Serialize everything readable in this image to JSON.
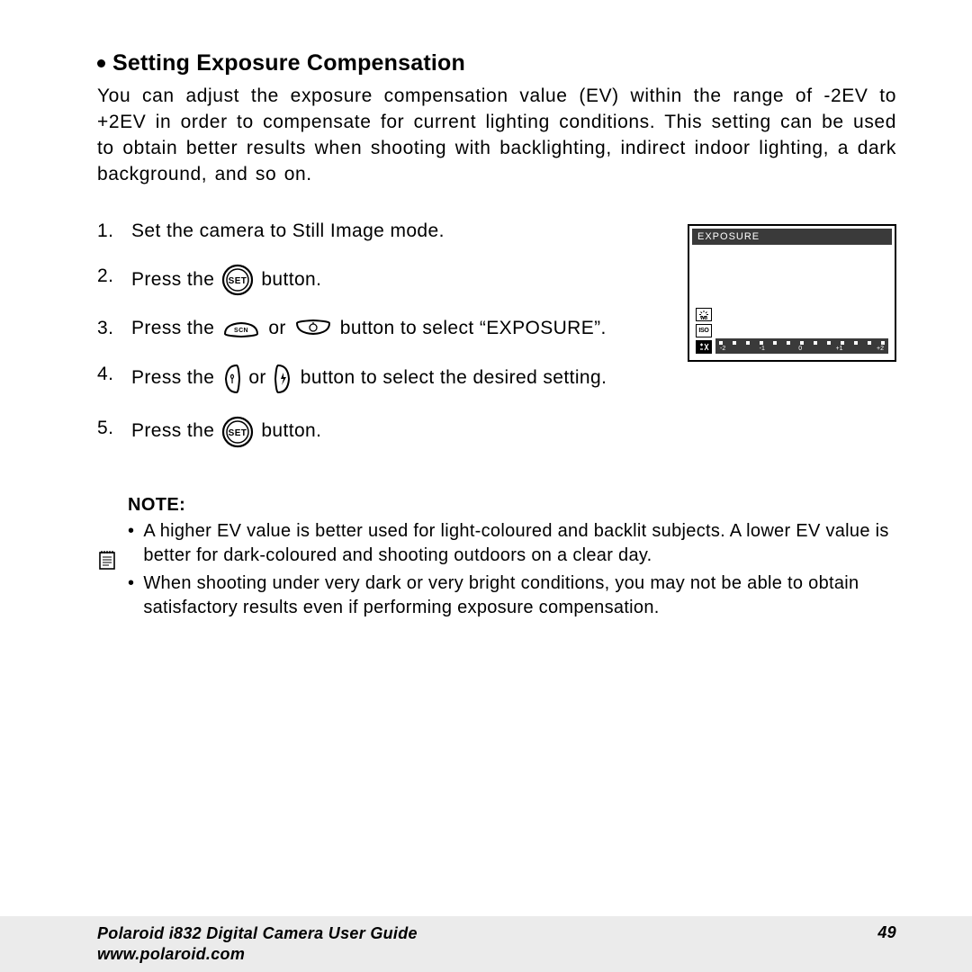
{
  "heading": "Setting Exposure Compensation",
  "intro": "You can adjust the exposure compensation value (EV) within the range of -2EV to +2EV in order to compensate for current lighting conditions. This setting can be used to obtain better results when shooting with backlighting, indirect indoor lighting, a dark background, and so on.",
  "steps": {
    "s1": "Set the camera to Still Image mode.",
    "s2a": "Press the",
    "s2b": "button.",
    "s3a": "Press the",
    "s3b": "or",
    "s3c": "button to select “EXPOSURE”.",
    "s4a": "Press the",
    "s4b": "or",
    "s4c": "button to select the desired setting.",
    "s5a": "Press the",
    "s5b": "button."
  },
  "lcd": {
    "title": "EXPOSURE",
    "icons": {
      "wb": "WB",
      "iso": "ISO",
      "ev": "±"
    },
    "ev_labels": [
      "-2",
      "-1",
      "0",
      "+1",
      "+2"
    ],
    "tick_count": 13,
    "colors": {
      "bar_bg": "#3a3a3a",
      "tick": "#ffffff",
      "text": "#ffffff",
      "border": "#000000"
    }
  },
  "note": {
    "title": "NOTE:",
    "items": [
      "A higher EV value is better used for light-coloured and backlit subjects. A lower EV value is better for dark-coloured and shooting outdoors on a clear day.",
      "When shooting under very dark or very bright conditions, you may not be able to obtain satisfactory results even if performing exposure compensation."
    ]
  },
  "footer": {
    "guide": "Polaroid i832 Digital Camera User Guide",
    "url": "www.polaroid.com",
    "page": "49"
  },
  "style": {
    "body_fontsize": 21,
    "heading_fontsize": 25,
    "note_fontsize": 20,
    "footer_fontsize": 18,
    "page_bg": "#ffffff",
    "footer_bg": "#ebebeb",
    "text_color": "#000000"
  }
}
